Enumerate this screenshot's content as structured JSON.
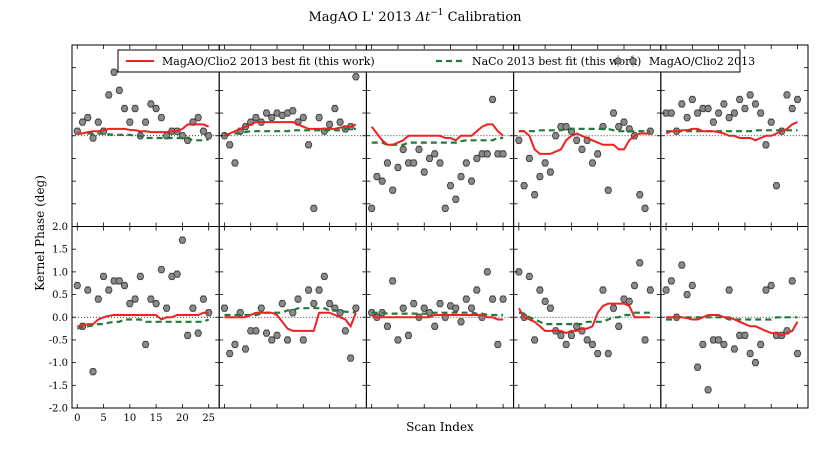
{
  "chart_data": {
    "type": "scatter",
    "title": "MagAO L' 2013 Δt⁻¹ Calibration",
    "title_text": "MagAO L' 2013",
    "title_math": "Δt",
    "title_sup": "−1",
    "title_tail": "Calibration",
    "xlabel": "Scan Index",
    "ylabel": "Kernel Phase (deg)",
    "ylim": [
      -2.0,
      2.0
    ],
    "xlim": [
      -1,
      27
    ],
    "yticks": [
      "-2.0",
      "-1.5",
      "-1.0",
      "-0.5",
      "0.0",
      "0.5",
      "1.0",
      "1.5",
      "2.0"
    ],
    "ytick_values": [
      -2.0,
      -1.5,
      -1.0,
      -0.5,
      0.0,
      0.5,
      1.0,
      1.5,
      2.0
    ],
    "xticks": [
      "0",
      "5",
      "10",
      "15",
      "20",
      "25"
    ],
    "xtick_values": [
      0,
      5,
      10,
      15,
      20,
      25
    ],
    "grid": false,
    "legend_position": "top",
    "legend": [
      {
        "name": "MagAO/Clio2 2013 best fit (this work)",
        "style": "solid",
        "color": "#ee2222"
      },
      {
        "name": "NaCo 2013 best fit (this work)",
        "style": "dashed",
        "color": "#227a3a"
      },
      {
        "name": "MagAO/Clio2 2013",
        "style": "marker",
        "color": "#888888"
      }
    ],
    "panels": [
      {
        "row": 0,
        "col": 0,
        "points": [
          0.1,
          0.3,
          0.4,
          -0.05,
          0.3,
          0.1,
          0.9,
          1.4,
          1.0,
          0.6,
          0.3,
          0.6,
          0.0,
          0.3,
          0.7,
          0.6,
          0.4,
          0.0,
          0.1,
          0.1,
          0.0,
          -0.1,
          0.3,
          0.4,
          0.1,
          0.0
        ],
        "fit_red": [
          0.05,
          0.05,
          0.08,
          0.1,
          0.1,
          0.12,
          0.15,
          0.15,
          0.15,
          0.15,
          0.13,
          0.12,
          0.1,
          0.1,
          0.08,
          0.08,
          0.08,
          0.08,
          0.1,
          0.1,
          0.15,
          0.25,
          0.25,
          0.25,
          0.25,
          0.2
        ],
        "fit_green": [
          0.05,
          0.05,
          0.05,
          0.05,
          0.05,
          0.05,
          0.03,
          0.02,
          0.02,
          0.02,
          0.02,
          0.0,
          0.0,
          -0.05,
          -0.05,
          -0.05,
          -0.05,
          -0.05,
          -0.05,
          -0.05,
          -0.05,
          -0.05,
          -0.1,
          -0.1,
          -0.1,
          -0.08
        ]
      },
      {
        "row": 0,
        "col": 1,
        "points": [
          0.0,
          -0.2,
          -0.6,
          0.1,
          0.2,
          0.3,
          0.4,
          0.3,
          0.5,
          0.4,
          0.5,
          0.45,
          0.5,
          0.55,
          0.3,
          0.4,
          -0.2,
          -1.6,
          0.4,
          0.1,
          0.25,
          0.6,
          0.3,
          0.15,
          0.2,
          1.3
        ],
        "fit_red": [
          0.0,
          0.05,
          0.1,
          0.15,
          0.2,
          0.25,
          0.3,
          0.3,
          0.3,
          0.3,
          0.3,
          0.3,
          0.3,
          0.3,
          0.25,
          0.2,
          0.15,
          0.15,
          0.15,
          0.15,
          0.15,
          0.15,
          0.18,
          0.2,
          0.2,
          0.25
        ],
        "fit_green": [
          0.03,
          0.03,
          0.05,
          0.05,
          0.08,
          0.1,
          0.1,
          0.1,
          0.1,
          0.1,
          0.1,
          0.1,
          0.1,
          0.12,
          0.12,
          0.12,
          0.12,
          0.12,
          0.12,
          0.12,
          0.12,
          0.12,
          0.12,
          0.15,
          0.15,
          0.15
        ]
      },
      {
        "row": 0,
        "col": 2,
        "points": [
          -1.6,
          -0.9,
          -1.0,
          -0.6,
          -1.2,
          -0.7,
          -0.3,
          -0.6,
          -0.6,
          -0.3,
          -0.8,
          -0.5,
          -0.4,
          -0.6,
          -1.6,
          -1.1,
          -1.4,
          -0.9,
          -0.6,
          -1.0,
          -0.5,
          -0.4,
          -0.4,
          0.8,
          -0.4,
          -0.4
        ],
        "fit_red": [
          0.2,
          0.05,
          -0.1,
          -0.2,
          -0.2,
          -0.15,
          -0.1,
          0.0,
          0.0,
          0.0,
          0.0,
          0.0,
          0.0,
          0.0,
          -0.05,
          -0.05,
          -0.1,
          0.0,
          0.0,
          0.0,
          0.1,
          0.2,
          0.25,
          0.25,
          0.1,
          0.0
        ],
        "fit_green": [
          -0.15,
          -0.15,
          -0.15,
          -0.2,
          -0.2,
          -0.2,
          -0.2,
          -0.15,
          -0.15,
          -0.15,
          -0.15,
          -0.15,
          -0.15,
          -0.15,
          -0.15,
          -0.15,
          -0.15,
          -0.12,
          -0.1,
          -0.1,
          -0.1,
          -0.1,
          -0.1,
          -0.1,
          -0.05,
          -0.05
        ]
      },
      {
        "row": 0,
        "col": 3,
        "points": [
          -0.1,
          -1.1,
          -0.5,
          -1.3,
          -0.9,
          -0.6,
          -0.8,
          0.0,
          0.2,
          0.2,
          0.1,
          -0.1,
          -0.3,
          -0.1,
          -0.6,
          -0.4,
          0.2,
          -1.2,
          0.5,
          0.2,
          0.3,
          0.15,
          0.0,
          -1.3,
          -1.6,
          0.1
        ],
        "fit_red": [
          0.1,
          0.1,
          0.0,
          -0.3,
          -0.4,
          -0.4,
          -0.4,
          -0.35,
          -0.3,
          -0.1,
          0.0,
          0.05,
          0.0,
          -0.05,
          -0.1,
          -0.15,
          -0.2,
          -0.2,
          -0.2,
          -0.3,
          -0.3,
          -0.1,
          0.0,
          0.05,
          0.05,
          0.05
        ],
        "fit_green": [
          0.1,
          0.1,
          0.1,
          0.1,
          0.12,
          0.12,
          0.12,
          0.12,
          0.12,
          0.15,
          0.15,
          0.15,
          0.15,
          0.15,
          0.15,
          0.15,
          0.15,
          0.15,
          0.12,
          0.1,
          0.1,
          0.1,
          0.1,
          0.1,
          0.1,
          0.1
        ]
      },
      {
        "row": 0,
        "col": 4,
        "points": [
          0.5,
          0.5,
          0.1,
          0.7,
          0.4,
          0.8,
          0.5,
          0.6,
          0.6,
          0.3,
          0.5,
          0.7,
          0.4,
          0.5,
          0.8,
          0.6,
          0.9,
          0.7,
          0.5,
          -0.2,
          0.3,
          -1.1,
          0.1,
          0.9,
          0.6,
          0.8
        ],
        "fit_red": [
          0.05,
          0.1,
          0.1,
          0.12,
          0.12,
          0.15,
          0.15,
          0.1,
          0.1,
          0.1,
          0.08,
          0.05,
          0.0,
          0.0,
          -0.05,
          -0.05,
          -0.05,
          -0.1,
          -0.05,
          0.0,
          0.0,
          0.05,
          0.1,
          0.15,
          0.25,
          0.3
        ],
        "fit_green": [
          0.1,
          0.1,
          0.1,
          0.1,
          0.1,
          0.1,
          0.1,
          0.1,
          0.1,
          0.1,
          0.1,
          0.1,
          0.1,
          0.1,
          0.1,
          0.1,
          0.1,
          0.12,
          0.12,
          0.12,
          0.12,
          0.12,
          0.12,
          0.12,
          0.12,
          0.12
        ]
      },
      {
        "row": 1,
        "col": 0,
        "points": [
          0.7,
          -0.2,
          0.6,
          -1.2,
          0.4,
          0.9,
          0.6,
          0.8,
          0.8,
          0.7,
          0.3,
          0.4,
          0.9,
          -0.6,
          0.4,
          0.3,
          1.05,
          0.2,
          0.9,
          0.95,
          1.7,
          -0.4,
          0.2,
          -0.35,
          0.4,
          0.1
        ],
        "fit_red": [
          -0.2,
          -0.18,
          -0.15,
          -0.15,
          -0.05,
          0.0,
          0.03,
          0.05,
          0.05,
          0.05,
          0.05,
          0.05,
          0.05,
          0.05,
          0.05,
          0.05,
          -0.05,
          0.0,
          0.0,
          0.05,
          0.05,
          0.05,
          0.05,
          0.05,
          0.1,
          0.1
        ],
        "fit_green": [
          -0.25,
          -0.22,
          -0.2,
          -0.18,
          -0.15,
          -0.15,
          -0.12,
          -0.1,
          -0.1,
          -0.05,
          -0.05,
          -0.05,
          -0.05,
          -0.1,
          -0.1,
          -0.1,
          -0.1,
          -0.1,
          -0.1,
          -0.1,
          -0.1,
          -0.1,
          -0.1,
          -0.1,
          -0.1,
          -0.05
        ]
      },
      {
        "row": 1,
        "col": 1,
        "points": [
          0.2,
          -0.8,
          -0.6,
          0.1,
          -0.7,
          -0.3,
          -0.3,
          0.2,
          -0.35,
          -0.5,
          -0.4,
          0.3,
          -0.5,
          0.1,
          0.4,
          -0.5,
          0.6,
          0.3,
          0.6,
          0.9,
          0.3,
          0.2,
          0.1,
          -0.3,
          -0.9,
          0.2
        ],
        "fit_red": [
          0.0,
          0.0,
          0.0,
          0.0,
          0.0,
          0.05,
          0.1,
          0.1,
          0.1,
          0.1,
          0.05,
          -0.1,
          -0.25,
          -0.3,
          -0.3,
          -0.3,
          -0.3,
          -0.3,
          0.1,
          0.1,
          0.1,
          0.05,
          0.0,
          -0.05,
          -0.2,
          0.1
        ],
        "fit_green": [
          0.05,
          0.05,
          0.05,
          0.05,
          0.05,
          0.05,
          0.05,
          0.08,
          0.1,
          0.1,
          0.1,
          0.1,
          0.15,
          0.15,
          0.2,
          0.2,
          0.2,
          0.2,
          0.2,
          0.2,
          0.15,
          0.15,
          0.15,
          0.12,
          0.12,
          0.1
        ]
      },
      {
        "row": 1,
        "col": 2,
        "points": [
          0.1,
          0.0,
          0.1,
          -0.2,
          0.8,
          -0.5,
          0.2,
          -0.4,
          0.3,
          0.0,
          0.2,
          0.1,
          -0.2,
          0.3,
          0.0,
          0.25,
          0.2,
          -0.1,
          0.4,
          0.2,
          0.6,
          0.0,
          1.0,
          0.4,
          -0.6,
          0.4
        ],
        "fit_red": [
          0.05,
          0.0,
          0.0,
          0.0,
          0.0,
          0.0,
          0.0,
          0.0,
          0.0,
          0.0,
          0.0,
          0.0,
          0.05,
          0.05,
          0.05,
          0.05,
          0.05,
          0.05,
          0.05,
          0.05,
          0.05,
          0.05,
          0.0,
          0.0,
          -0.05,
          -0.05
        ],
        "fit_green": [
          0.1,
          0.1,
          0.1,
          0.08,
          0.08,
          0.08,
          0.08,
          0.08,
          0.08,
          0.08,
          0.08,
          0.08,
          0.1,
          0.1,
          0.1,
          0.1,
          0.1,
          0.1,
          0.1,
          0.1,
          0.08,
          0.08,
          0.05,
          0.05,
          0.05,
          0.05
        ]
      },
      {
        "row": 1,
        "col": 3,
        "points": [
          1.0,
          0.0,
          0.9,
          -0.5,
          0.6,
          0.35,
          0.2,
          -0.3,
          -0.4,
          -0.6,
          -0.4,
          -0.2,
          -0.3,
          -0.5,
          -0.6,
          -0.8,
          0.6,
          -0.8,
          0.2,
          -0.2,
          0.4,
          0.35,
          0.7,
          1.2,
          -0.5,
          0.6
        ],
        "fit_red": [
          0.2,
          0.0,
          -0.05,
          -0.1,
          -0.2,
          -0.3,
          -0.3,
          -0.3,
          -0.3,
          -0.35,
          -0.3,
          -0.3,
          -0.25,
          -0.25,
          -0.2,
          0.1,
          0.25,
          0.3,
          0.3,
          0.3,
          0.3,
          0.25,
          0.0,
          0.0,
          0.0,
          0.0
        ],
        "fit_green": [
          0.1,
          0.08,
          0.0,
          -0.05,
          -0.1,
          -0.15,
          -0.15,
          -0.15,
          -0.15,
          -0.15,
          -0.15,
          -0.15,
          -0.15,
          -0.1,
          -0.1,
          -0.1,
          -0.1,
          -0.05,
          0.0,
          0.0,
          0.05,
          0.05,
          0.1,
          0.1,
          0.1,
          0.1
        ]
      },
      {
        "row": 1,
        "col": 4,
        "points": [
          0.6,
          0.8,
          0.0,
          1.15,
          0.5,
          0.7,
          -1.1,
          -0.6,
          -1.6,
          -0.5,
          -0.5,
          -0.6,
          0.6,
          -0.7,
          -0.4,
          -0.4,
          -0.8,
          -1.0,
          -0.6,
          0.6,
          0.7,
          -0.4,
          -0.4,
          -0.3,
          0.8,
          -0.8
        ],
        "fit_red": [
          0.0,
          0.0,
          0.0,
          0.0,
          -0.02,
          -0.05,
          -0.05,
          0.0,
          0.05,
          0.05,
          0.05,
          0.0,
          0.0,
          -0.05,
          -0.1,
          -0.15,
          -0.2,
          -0.2,
          -0.25,
          -0.3,
          -0.35,
          -0.35,
          -0.4,
          -0.35,
          -0.3,
          -0.1
        ],
        "fit_green": [
          -0.05,
          -0.05,
          0.0,
          0.0,
          0.0,
          0.0,
          0.0,
          0.0,
          0.0,
          0.0,
          0.0,
          0.0,
          -0.05,
          -0.05,
          -0.05,
          -0.05,
          -0.05,
          -0.05,
          -0.05,
          -0.05,
          -0.05,
          0.0,
          0.0,
          0.0,
          0.0,
          0.0
        ]
      }
    ]
  }
}
